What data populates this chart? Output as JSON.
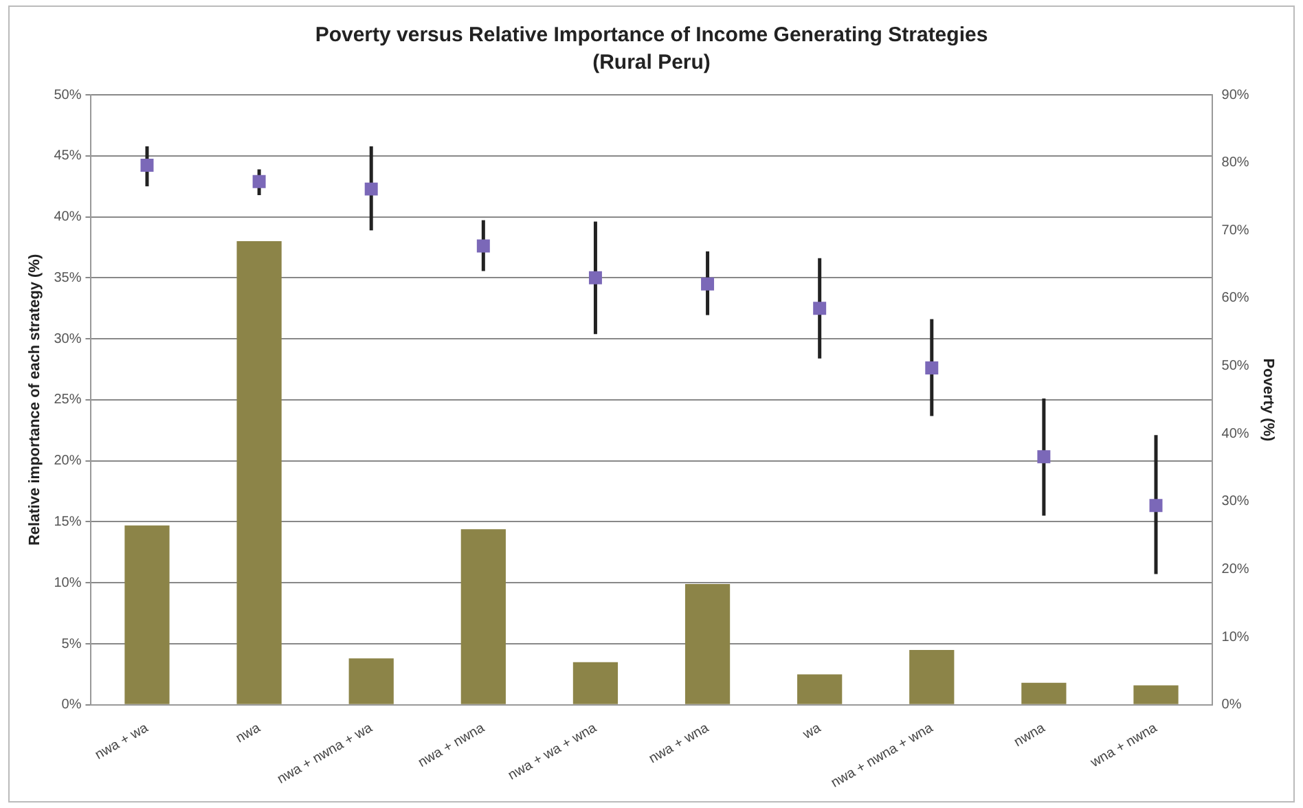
{
  "chart_data": {
    "type": "bar",
    "title": "Poverty versus Relative Importance of Income Generating Strategies",
    "subtitle": "(Rural Peru)",
    "ylabel": "Relative importance of each strategy (%)",
    "y2label": "Poverty (%)",
    "categories": [
      "nwa + wa",
      "nwa",
      "nwa + nwna + wa",
      "nwa + nwna",
      "nwa + wa + wna",
      "nwa + wna",
      "wa",
      "nwa + nwna + wna",
      "nwna",
      "wna + nwna"
    ],
    "series": [
      {
        "color": "#8c8448",
        "values": [
          14.7,
          38,
          3.8,
          14.4,
          3.5,
          9.9,
          2.5,
          4.5,
          1.8,
          1.6
        ]
      },
      {
        "type": "scatter",
        "axis": "y2",
        "color": "#7b68b8",
        "marker": "square",
        "x": [
          "nwa + wa",
          "nwa",
          "nwa + nwna + wa",
          "nwa + nwna",
          "nwa + wa + wna",
          "nwa + wna",
          "wa",
          "nwa + nwna + wna",
          "nwna",
          "wna + nwna"
        ],
        "values": [
          79.6,
          77.2,
          76.1,
          67.7,
          63,
          62.1,
          58.5,
          49.7,
          36.6,
          29.4
        ],
        "errors": [
          [
            76.5,
            82.4
          ],
          [
            75.2,
            79
          ],
          [
            70,
            82.4
          ],
          [
            64,
            71.5
          ],
          [
            54.7,
            71.3
          ],
          [
            57.5,
            66.9
          ],
          [
            51.1,
            65.9
          ],
          [
            42.6,
            56.9
          ],
          [
            27.9,
            45.2
          ],
          [
            19.3,
            39.8
          ]
        ]
      }
    ],
    "ylim": [
      0,
      50
    ],
    "yticks": [
      {
        "value": 0,
        "label": "0%"
      },
      {
        "value": 5,
        "label": "5%"
      },
      {
        "value": 10,
        "label": "10%"
      },
      {
        "value": 15,
        "label": "15%"
      },
      {
        "value": 20,
        "label": "20%"
      },
      {
        "value": 25,
        "label": "25%"
      },
      {
        "value": 30,
        "label": "30%"
      },
      {
        "value": 35,
        "label": "35%"
      },
      {
        "value": 40,
        "label": "40%"
      },
      {
        "value": 45,
        "label": "45%"
      },
      {
        "value": 50,
        "label": "50%"
      }
    ],
    "y2lim": [
      0,
      90
    ],
    "y2ticks": [
      {
        "value": 0,
        "label": "0%"
      },
      {
        "value": 10,
        "label": "10%"
      },
      {
        "value": 20,
        "label": "20%"
      },
      {
        "value": 30,
        "label": "30%"
      },
      {
        "value": 40,
        "label": "40%"
      },
      {
        "value": 50,
        "label": "50%"
      },
      {
        "value": 60,
        "label": "60%"
      },
      {
        "value": 70,
        "label": "70%"
      },
      {
        "value": 80,
        "label": "80%"
      },
      {
        "value": 90,
        "label": "90%"
      }
    ],
    "grid": "y",
    "legend": false
  }
}
